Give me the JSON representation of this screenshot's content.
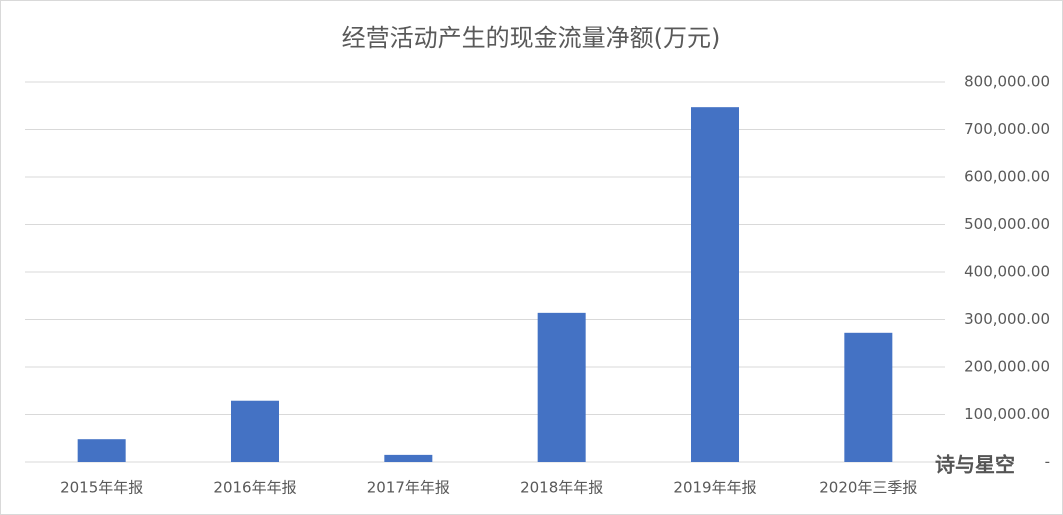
{
  "chart_data": {
    "type": "bar",
    "title": "经营活动产生的现金流量净额(万元)",
    "categories": [
      "2015年年报",
      "2016年年报",
      "2017年年报",
      "2018年年报",
      "2019年年报",
      "2020年三季报"
    ],
    "values": [
      48000,
      129000,
      15000,
      314000,
      747000,
      272000
    ],
    "color": "#4472c4",
    "ylim": [
      0,
      800000
    ],
    "yticks": [
      {
        "value": 0,
        "label": "-"
      },
      {
        "value": 100000,
        "label": "100,000.00"
      },
      {
        "value": 200000,
        "label": "200,000.00"
      },
      {
        "value": 300000,
        "label": "300,000.00"
      },
      {
        "value": 400000,
        "label": "400,000.00"
      },
      {
        "value": 500000,
        "label": "500,000.00"
      },
      {
        "value": 600000,
        "label": "600,000.00"
      },
      {
        "value": 700000,
        "label": "700,000.00"
      },
      {
        "value": 800000,
        "label": "800,000.00"
      }
    ],
    "y_axis_side": "right",
    "grid": true,
    "watermark": "诗与星空"
  }
}
